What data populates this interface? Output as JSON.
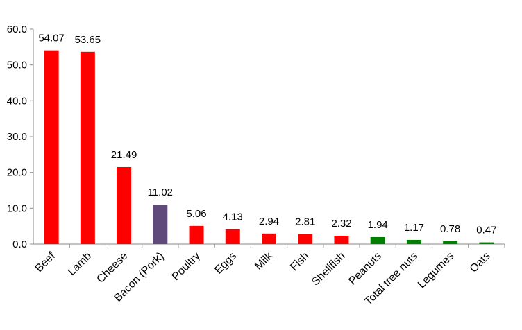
{
  "chart_data": {
    "type": "bar",
    "categories": [
      "Beef",
      "Lamb",
      "Cheese",
      "Bacon (Pork)",
      "Poultry",
      "Eggs",
      "Milk",
      "Fish",
      "Shellfish",
      "Peanuts",
      "Total tree nuts",
      "Legumes",
      "Oats"
    ],
    "values": [
      54.07,
      53.65,
      21.49,
      11.02,
      5.06,
      4.13,
      2.94,
      2.81,
      2.32,
      1.94,
      1.17,
      0.78,
      0.47
    ],
    "data_labels": [
      "54.07",
      "53.65",
      "21.49",
      "11.02",
      "5.06",
      "4.13",
      "2.94",
      "2.81",
      "2.32",
      "1.94",
      "1.17",
      "0.78",
      "0.47"
    ],
    "bar_colors": [
      "#ff0000",
      "#ff0000",
      "#ff0000",
      "#604a7b",
      "#ff0000",
      "#ff0000",
      "#ff0000",
      "#ff0000",
      "#ff0000",
      "#008000",
      "#008000",
      "#008000",
      "#008000"
    ],
    "yticks": [
      "0.0",
      "10.0",
      "20.0",
      "30.0",
      "40.0",
      "50.0",
      "60.0"
    ],
    "ylim": [
      0,
      60
    ],
    "title": "",
    "xlabel": "",
    "ylabel": "",
    "grid": false,
    "legend": false
  }
}
